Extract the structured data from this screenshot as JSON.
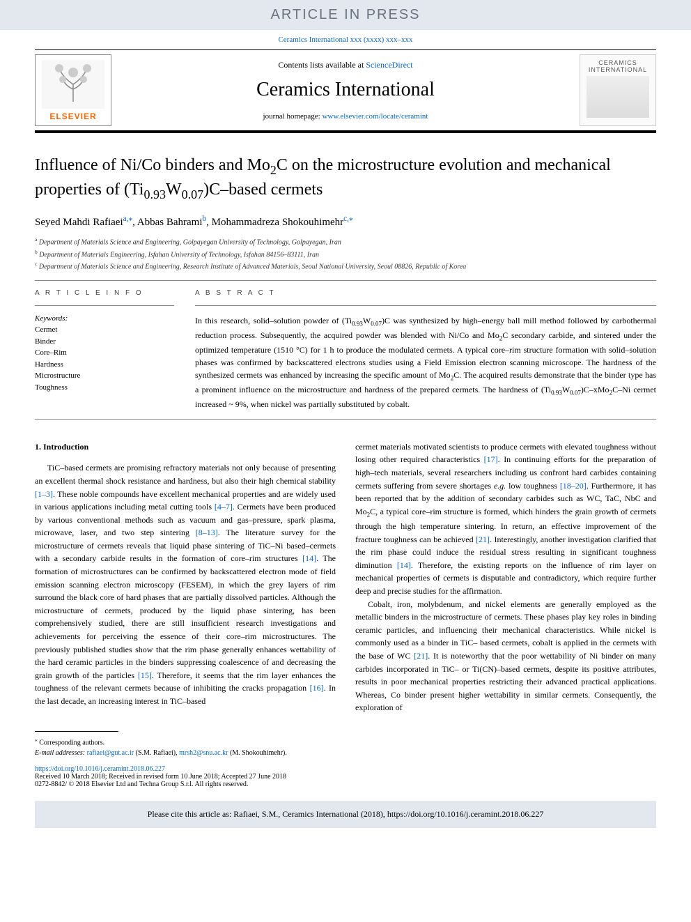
{
  "banner": {
    "article_in_press": "ARTICLE IN PRESS",
    "citation_header_prefix": "Ceramics International xxx (xxxx) xxx–xxx",
    "banner_bg": "#e3e8ee",
    "banner_color": "#6b7280"
  },
  "masthead": {
    "contents_prefix": "Contents lists available at ",
    "contents_link": "ScienceDirect",
    "journal_name": "Ceramics International",
    "homepage_prefix": "journal homepage: ",
    "homepage_link": "www.elsevier.com/locate/ceramint",
    "elsevier_brand": "ELSEVIER",
    "cover_title": "CERAMICS INTERNATIONAL",
    "link_color": "#0066cc",
    "border_bottom_width": 4
  },
  "title": {
    "html": "Influence of Ni/Co binders and Mo<sub>2</sub>C on the microstructure evolution and mechanical properties of (Ti<sub>0.93</sub>W<sub>0.07</sub>)C–based cermets",
    "fontsize": 24
  },
  "authors": [
    {
      "name": "Seyed Mahdi Rafiaei",
      "aff": "a",
      "corr": true
    },
    {
      "name": "Abbas Bahrami",
      "aff": "b",
      "corr": false
    },
    {
      "name": "Mohammadreza Shokouhimehr",
      "aff": "c",
      "corr": true
    }
  ],
  "affiliations": [
    {
      "sup": "a",
      "text": "Department of Materials Science and Engineering, Golpayegan University of Technology, Golpayegan, Iran"
    },
    {
      "sup": "b",
      "text": "Department of Materials Engineering, Isfahan University of Technology, Isfahan 84156–83111, Iran"
    },
    {
      "sup": "c",
      "text": "Department of Materials Science and Engineering, Research Institute of Advanced Materials, Seoul National University, Seoul 08826, Republic of Korea"
    }
  ],
  "article_info": {
    "heading": "A R T I C L E  I N F O",
    "kw_label": "Keywords:",
    "keywords": [
      "Cermet",
      "Binder",
      "Core–Rim",
      "Hardness",
      "Microstructure",
      "Toughness"
    ]
  },
  "abstract": {
    "heading": "A B S T R A C T",
    "text_html": "In this research, solid–solution powder of (Ti<sub>0.93</sub>W<sub>0.07</sub>)C was synthesized by high–energy ball mill method followed by carbothermal reduction process. Subsequently, the acquired powder was blended with Ni/Co and Mo<sub>2</sub>C secondary carbide, and sintered under the optimized temperature (1510 °C) for 1 h to produce the modulated cermets. A typical core–rim structure formation with solid–solution phases was confirmed by backscattered electrons studies using a Field Emission electron scanning microscope. The hardness of the synthesized cermets was enhanced by increasing the specific amount of Mo<sub>2</sub>C. The acquired results demonstrate that the binder type has a prominent influence on the microstructure and hardness of the prepared cermets. The hardness of (Ti<sub>0.93</sub>W<sub>0.07</sub>)C–xMo<sub>2</sub>C–Ni cermet increased ~ 9%, when nickel was partially substituted by cobalt."
  },
  "body": {
    "section_number": "1.",
    "section_title": "Introduction",
    "left_html": "TiC–based cermets are promising refractory materials not only because of presenting an excellent thermal shock resistance and hardness, but also their high chemical stability <a class=\"ref\" href=\"#\">[1–3]</a>. These noble compounds have excellent mechanical properties and are widely used in various applications including metal cutting tools <a class=\"ref\" href=\"#\">[4–7]</a>. Cermets have been produced by various conventional methods such as vacuum and gas–pressure, spark plasma, microwave, laser, and two step sintering <a class=\"ref\" href=\"#\">[8–13]</a>. The literature survey for the microstructure of cermets reveals that liquid phase sintering of TiC–Ni based–cermets with a secondary carbide results in the formation of core–rim structures <a class=\"ref\" href=\"#\">[14]</a>. The formation of microstructures can be confirmed by backscattered electron mode of field emission scanning electron microscopy (FESEM), in which the grey layers of rim surround the black core of hard phases that are partially dissolved particles. Although the microstructure of cermets, produced by the liquid phase sintering, has been comprehensively studied, there are still insufficient research investigations and achievements for perceiving the essence of their core–rim microstructures. The previously published studies show that the rim phase generally enhances wettability of the hard ceramic particles in the binders suppressing coalescence of and decreasing the grain growth of the particles <a class=\"ref\" href=\"#\">[15]</a>. Therefore, it seems that the rim layer enhances the toughness of the relevant cermets because of inhibiting the cracks propagation <a class=\"ref\" href=\"#\">[16]</a>. In the last decade, an increasing interest in TiC–based",
    "right_html_p1": "cermet materials motivated scientists to produce cermets with elevated toughness without losing other required characteristics <a class=\"ref\" href=\"#\">[17]</a>. In continuing efforts for the preparation of high–tech materials, several researchers including us confront hard carbides containing cermets suffering from severe shortages <i>e.g.</i> low toughness <a class=\"ref\" href=\"#\">[18–20]</a>. Furthermore, it has been reported that by the addition of secondary carbides such as WC, TaC, NbC and Mo<sub>2</sub>C, a typical core–rim structure is formed, which hinders the grain growth of cermets through the high temperature sintering. In return, an effective improvement of the fracture toughness can be achieved <a class=\"ref\" href=\"#\">[21]</a>. Interestingly, another investigation clarified that the rim phase could induce the residual stress resulting in significant toughness diminution <a class=\"ref\" href=\"#\">[14]</a>. Therefore, the existing reports on the influence of rim layer on mechanical properties of cermets is disputable and contradictory, which require further deep and precise studies for the affirmation.",
    "right_html_p2": "Cobalt, iron, molybdenum, and nickel elements are generally employed as the metallic binders in the microstructure of cermets. These phases play key roles in binding ceramic particles, and influencing their mechanical characteristics. While nickel is commonly used as a binder in TiC– based cermets, cobalt is applied in the cermets with the base of WC <a class=\"ref\" href=\"#\">[21]</a>. It is noteworthy that the poor wettability of Ni binder on many carbides incorporated in TiC– or Ti(CN)–based cermets, despite its positive attributes, results in poor mechanical properties restricting their advanced practical applications. Whereas, Co binder present higher wettability in similar cermets. Consequently, the exploration of"
  },
  "footnotes": {
    "corr_marker": "⁎",
    "corr_text": "Corresponding authors.",
    "email_label": "E-mail addresses:",
    "emails": [
      {
        "addr": "rafiaei@gut.ac.ir",
        "who": "(S.M. Rafiaei)"
      },
      {
        "addr": "mrsh2@snu.ac.kr",
        "who": "(M. Shokouhimehr)"
      }
    ]
  },
  "doi": {
    "url": "https://doi.org/10.1016/j.ceramint.2018.06.227",
    "received": "Received 10 March 2018; Received in revised form 10 June 2018; Accepted 27 June 2018",
    "copyright": "0272-8842/ © 2018 Elsevier Ltd and Techna Group S.r.l. All rights reserved."
  },
  "cite_box": "Please cite this article as: Rafiaei, S.M., Ceramics International (2018), https://doi.org/10.1016/j.ceramint.2018.06.227",
  "colors": {
    "link": "#0066cc",
    "text": "#000000",
    "banner_bg": "#e3e8ee",
    "elsevier_orange": "#ff6600"
  }
}
